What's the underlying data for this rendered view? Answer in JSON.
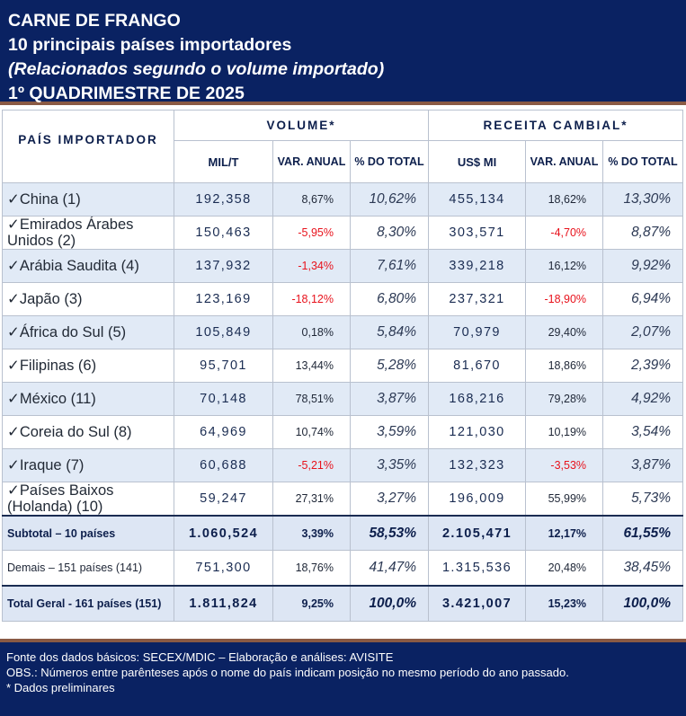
{
  "header": {
    "line1": "CARNE DE FRANGO",
    "line2": "10 principais países importadores",
    "line3": "(Relacionados segundo o volume importado)",
    "line4": "1º QUADRIMESTRE DE 2025"
  },
  "table": {
    "country_header": "PAÍS IMPORTADOR",
    "volume_header": "VOLUME*",
    "revenue_header": "RECEITA CAMBIAL*",
    "sub_headers": [
      "MIL/T",
      "VAR. ANUAL",
      "% DO TOTAL",
      "US$ MI",
      "VAR. ANUAL",
      "% DO TOTAL"
    ],
    "rows": [
      {
        "country": "✓China (1)",
        "vol": "192,358",
        "vol_var": "8,67%",
        "vol_pct": "10,62%",
        "rev": "455,134",
        "rev_var": "18,62%",
        "rev_pct": "13,30%"
      },
      {
        "country": "✓Emirados Árabes Unidos (2)",
        "vol": "150,463",
        "vol_var": "-5,95%",
        "vol_pct": "8,30%",
        "rev": "303,571",
        "rev_var": "-4,70%",
        "rev_pct": "8,87%"
      },
      {
        "country": "✓Arábia Saudita (4)",
        "vol": "137,932",
        "vol_var": "-1,34%",
        "vol_pct": "7,61%",
        "rev": "339,218",
        "rev_var": "16,12%",
        "rev_pct": "9,92%"
      },
      {
        "country": "✓Japão (3)",
        "vol": "123,169",
        "vol_var": "-18,12%",
        "vol_pct": "6,80%",
        "rev": "237,321",
        "rev_var": "-18,90%",
        "rev_pct": "6,94%"
      },
      {
        "country": "✓África do Sul (5)",
        "vol": "105,849",
        "vol_var": "0,18%",
        "vol_pct": "5,84%",
        "rev": "70,979",
        "rev_var": "29,40%",
        "rev_pct": "2,07%"
      },
      {
        "country": "✓Filipinas (6)",
        "vol": "95,701",
        "vol_var": "13,44%",
        "vol_pct": "5,28%",
        "rev": "81,670",
        "rev_var": "18,86%",
        "rev_pct": "2,39%"
      },
      {
        "country": "✓México (11)",
        "vol": "70,148",
        "vol_var": "78,51%",
        "vol_pct": "3,87%",
        "rev": "168,216",
        "rev_var": "79,28%",
        "rev_pct": "4,92%"
      },
      {
        "country": "✓Coreia do Sul (8)",
        "vol": "64,969",
        "vol_var": "10,74%",
        "vol_pct": "3,59%",
        "rev": "121,030",
        "rev_var": "10,19%",
        "rev_pct": "3,54%"
      },
      {
        "country": "✓Iraque (7)",
        "vol": "60,688",
        "vol_var": "-5,21%",
        "vol_pct": "3,35%",
        "rev": "132,323",
        "rev_var": "-3,53%",
        "rev_pct": "3,87%"
      },
      {
        "country": "✓Países Baixos (Holanda) (10)",
        "vol": "59,247",
        "vol_var": "27,31%",
        "vol_pct": "3,27%",
        "rev": "196,009",
        "rev_var": "55,99%",
        "rev_pct": "5,73%"
      }
    ],
    "subtotal": {
      "label": "Subtotal – 10 países",
      "vol": "1.060,524",
      "vol_var": "3,39%",
      "vol_pct": "58,53%",
      "rev": "2.105,471",
      "rev_var": "12,17%",
      "rev_pct": "61,55%"
    },
    "demais": {
      "label": "Demais – 151 países (141)",
      "vol": "751,300",
      "vol_var": "18,76%",
      "vol_pct": "41,47%",
      "rev": "1.315,536",
      "rev_var": "20,48%",
      "rev_pct": "38,45%"
    },
    "total": {
      "label": "Total Geral - 161 países (151)",
      "vol": "1.811,824",
      "vol_var": "9,25%",
      "vol_pct": "100,0%",
      "rev": "3.421,007",
      "rev_var": "15,23%",
      "rev_pct": "100,0%"
    }
  },
  "footer": {
    "line1": "Fonte dos dados básicos: SECEX/MDIC – Elaboração e análises: AVISITE",
    "line2": "OBS.: Números entre parênteses após o nome do país indicam posição no mesmo período do ano passado.",
    "line3": "* Dados preliminares"
  },
  "colors": {
    "navy": "#0a2262",
    "accent_border": "#8a5a44",
    "row_tint": "#e1eaf6",
    "negative": "#e8121c"
  }
}
